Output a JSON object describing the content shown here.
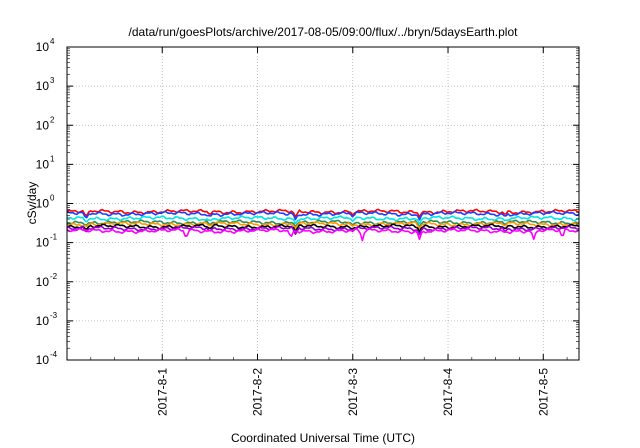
{
  "chart_data": {
    "type": "line",
    "title": "/data/run/goesPlots/archive/2017-08-05/09:00/flux/../bryn/5daysEarth.plot",
    "xlabel": "Coordinated Universal Time (UTC)",
    "ylabel": "cSv/day",
    "yscale": "log",
    "ylim": [
      0.0001,
      10000
    ],
    "xlim": [
      "2017-07-31 00:00",
      "2017-08-05 09:00"
    ],
    "grid": true,
    "x_ticks": [
      "2017-8-1",
      "2017-8-2",
      "2017-8-3",
      "2017-8-4",
      "2017-8-5"
    ],
    "y_ticks": [
      {
        "base": "10",
        "exp": "4"
      },
      {
        "base": "10",
        "exp": "3"
      },
      {
        "base": "10",
        "exp": "2"
      },
      {
        "base": "10",
        "exp": "1"
      },
      {
        "base": "10",
        "exp": "0"
      },
      {
        "base": "10",
        "exp": "-1"
      },
      {
        "base": "10",
        "exp": "-2"
      },
      {
        "base": "10",
        "exp": "-3"
      },
      {
        "base": "10",
        "exp": "-4"
      }
    ],
    "series": [
      {
        "color": "#ff0000",
        "typical": 0.62,
        "dips": [
          [
            0.2,
            0.45
          ],
          [
            1.5,
            0.5
          ],
          [
            2.4,
            0.45
          ],
          [
            3.0,
            0.5
          ],
          [
            3.7,
            0.45
          ],
          [
            4.6,
            0.5
          ]
        ]
      },
      {
        "color": "#1e3cff",
        "typical": 0.55,
        "dips": [
          [
            0.2,
            0.4
          ],
          [
            1.5,
            0.45
          ],
          [
            2.4,
            0.38
          ],
          [
            3.0,
            0.45
          ],
          [
            3.7,
            0.38
          ],
          [
            4.6,
            0.45
          ]
        ]
      },
      {
        "color": "#00e5e5",
        "typical": 0.42,
        "dips": [
          [
            0.2,
            0.32
          ],
          [
            1.5,
            0.35
          ],
          [
            2.4,
            0.3
          ],
          [
            3.0,
            0.35
          ],
          [
            3.7,
            0.3
          ],
          [
            4.6,
            0.35
          ]
        ]
      },
      {
        "color": "#2e8b57",
        "typical": 0.33,
        "dips": [
          [
            0.2,
            0.27
          ],
          [
            1.5,
            0.28
          ],
          [
            2.4,
            0.25
          ],
          [
            3.0,
            0.28
          ],
          [
            3.7,
            0.25
          ],
          [
            4.6,
            0.28
          ]
        ]
      },
      {
        "color": "#ff9900",
        "typical": 0.3,
        "dips": [
          [
            0.2,
            0.25
          ],
          [
            1.5,
            0.26
          ],
          [
            2.4,
            0.23
          ],
          [
            3.0,
            0.26
          ],
          [
            3.7,
            0.23
          ],
          [
            4.6,
            0.26
          ]
        ]
      },
      {
        "color": "#000000",
        "typical": 0.26,
        "dips": [
          [
            0.2,
            0.21
          ],
          [
            1.5,
            0.22
          ],
          [
            2.4,
            0.19
          ],
          [
            3.0,
            0.22
          ],
          [
            3.7,
            0.19
          ],
          [
            4.6,
            0.22
          ]
        ]
      },
      {
        "color": "#9400d3",
        "typical": 0.23,
        "dips": [
          [
            0.2,
            0.18
          ],
          [
            1.5,
            0.19
          ],
          [
            2.4,
            0.16
          ],
          [
            3.0,
            0.19
          ],
          [
            3.7,
            0.16
          ],
          [
            4.6,
            0.19
          ]
        ]
      },
      {
        "color": "#ff00ff",
        "typical": 0.2,
        "dips": [
          [
            1.25,
            0.12
          ],
          [
            2.35,
            0.13
          ],
          [
            3.1,
            0.11
          ],
          [
            3.7,
            0.12
          ],
          [
            4.9,
            0.12
          ],
          [
            5.2,
            0.13
          ]
        ]
      }
    ]
  }
}
